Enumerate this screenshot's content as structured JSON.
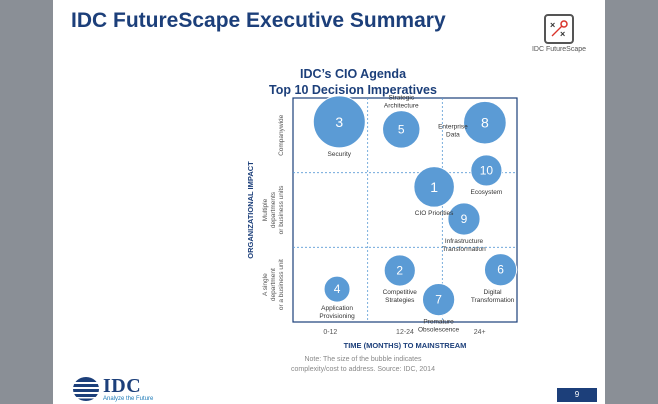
{
  "slide": {
    "title": "IDC FutureScape Executive Summary",
    "logo_caption": "IDC FutureScape",
    "page_number": "9"
  },
  "chart_title": {
    "line1": "IDC’s CIO Agenda",
    "line2": "Top 10 Decision Imperatives"
  },
  "footer": {
    "note_line1": "Note: The size of the bubble indicates",
    "note_line2": "complexity/cost to address. Source: IDC, 2014",
    "brand": "IDC",
    "tagline": "Analyze the Future"
  },
  "chart_data": {
    "type": "scatter",
    "xlabel": "TIME (MONTHS) TO MAINSTREAM",
    "ylabel": "ORGANIZATIONAL IMPACT",
    "x_categories": [
      "0-12",
      "12-24",
      "24+"
    ],
    "y_categories": [
      [
        "A single",
        "department",
        "or a business unit"
      ],
      [
        "Multiple",
        "departments",
        "or business units"
      ],
      [
        "Companywide"
      ]
    ],
    "bubble_color": "#5b9bd5",
    "bubbles": [
      {
        "number": "3",
        "label": [
          "Security"
        ],
        "x": 0.62,
        "y": 2.68,
        "size": 1.0
      },
      {
        "number": "5",
        "label": [
          "Strategic",
          "Architecture"
        ],
        "x": 1.45,
        "y": 2.58,
        "size": 0.72
      },
      {
        "number": "8",
        "label": [
          "Enterprise",
          "Data"
        ],
        "x": 2.57,
        "y": 2.67,
        "size": 0.82
      },
      {
        "number": "10",
        "label": [
          "Ecosystem"
        ],
        "x": 2.59,
        "y": 2.03,
        "size": 0.6
      },
      {
        "number": "1",
        "label": [
          "CIO Priorities"
        ],
        "x": 1.89,
        "y": 1.81,
        "size": 0.78
      },
      {
        "number": "9",
        "label": [
          "Infrastructure",
          "Transformation"
        ],
        "x": 2.29,
        "y": 1.38,
        "size": 0.62
      },
      {
        "number": "4",
        "label": [
          "Application",
          "Provisioning"
        ],
        "x": 0.59,
        "y": 0.44,
        "size": 0.5
      },
      {
        "number": "2",
        "label": [
          "Competitive",
          "Strategies"
        ],
        "x": 1.43,
        "y": 0.69,
        "size": 0.6
      },
      {
        "number": "7",
        "label": [
          "Premature",
          "Obsolescence"
        ],
        "x": 1.95,
        "y": 0.3,
        "size": 0.62
      },
      {
        "number": "6",
        "label": [
          "Digital",
          "Transformation"
        ],
        "x": 2.78,
        "y": 0.7,
        "size": 0.62
      }
    ]
  }
}
